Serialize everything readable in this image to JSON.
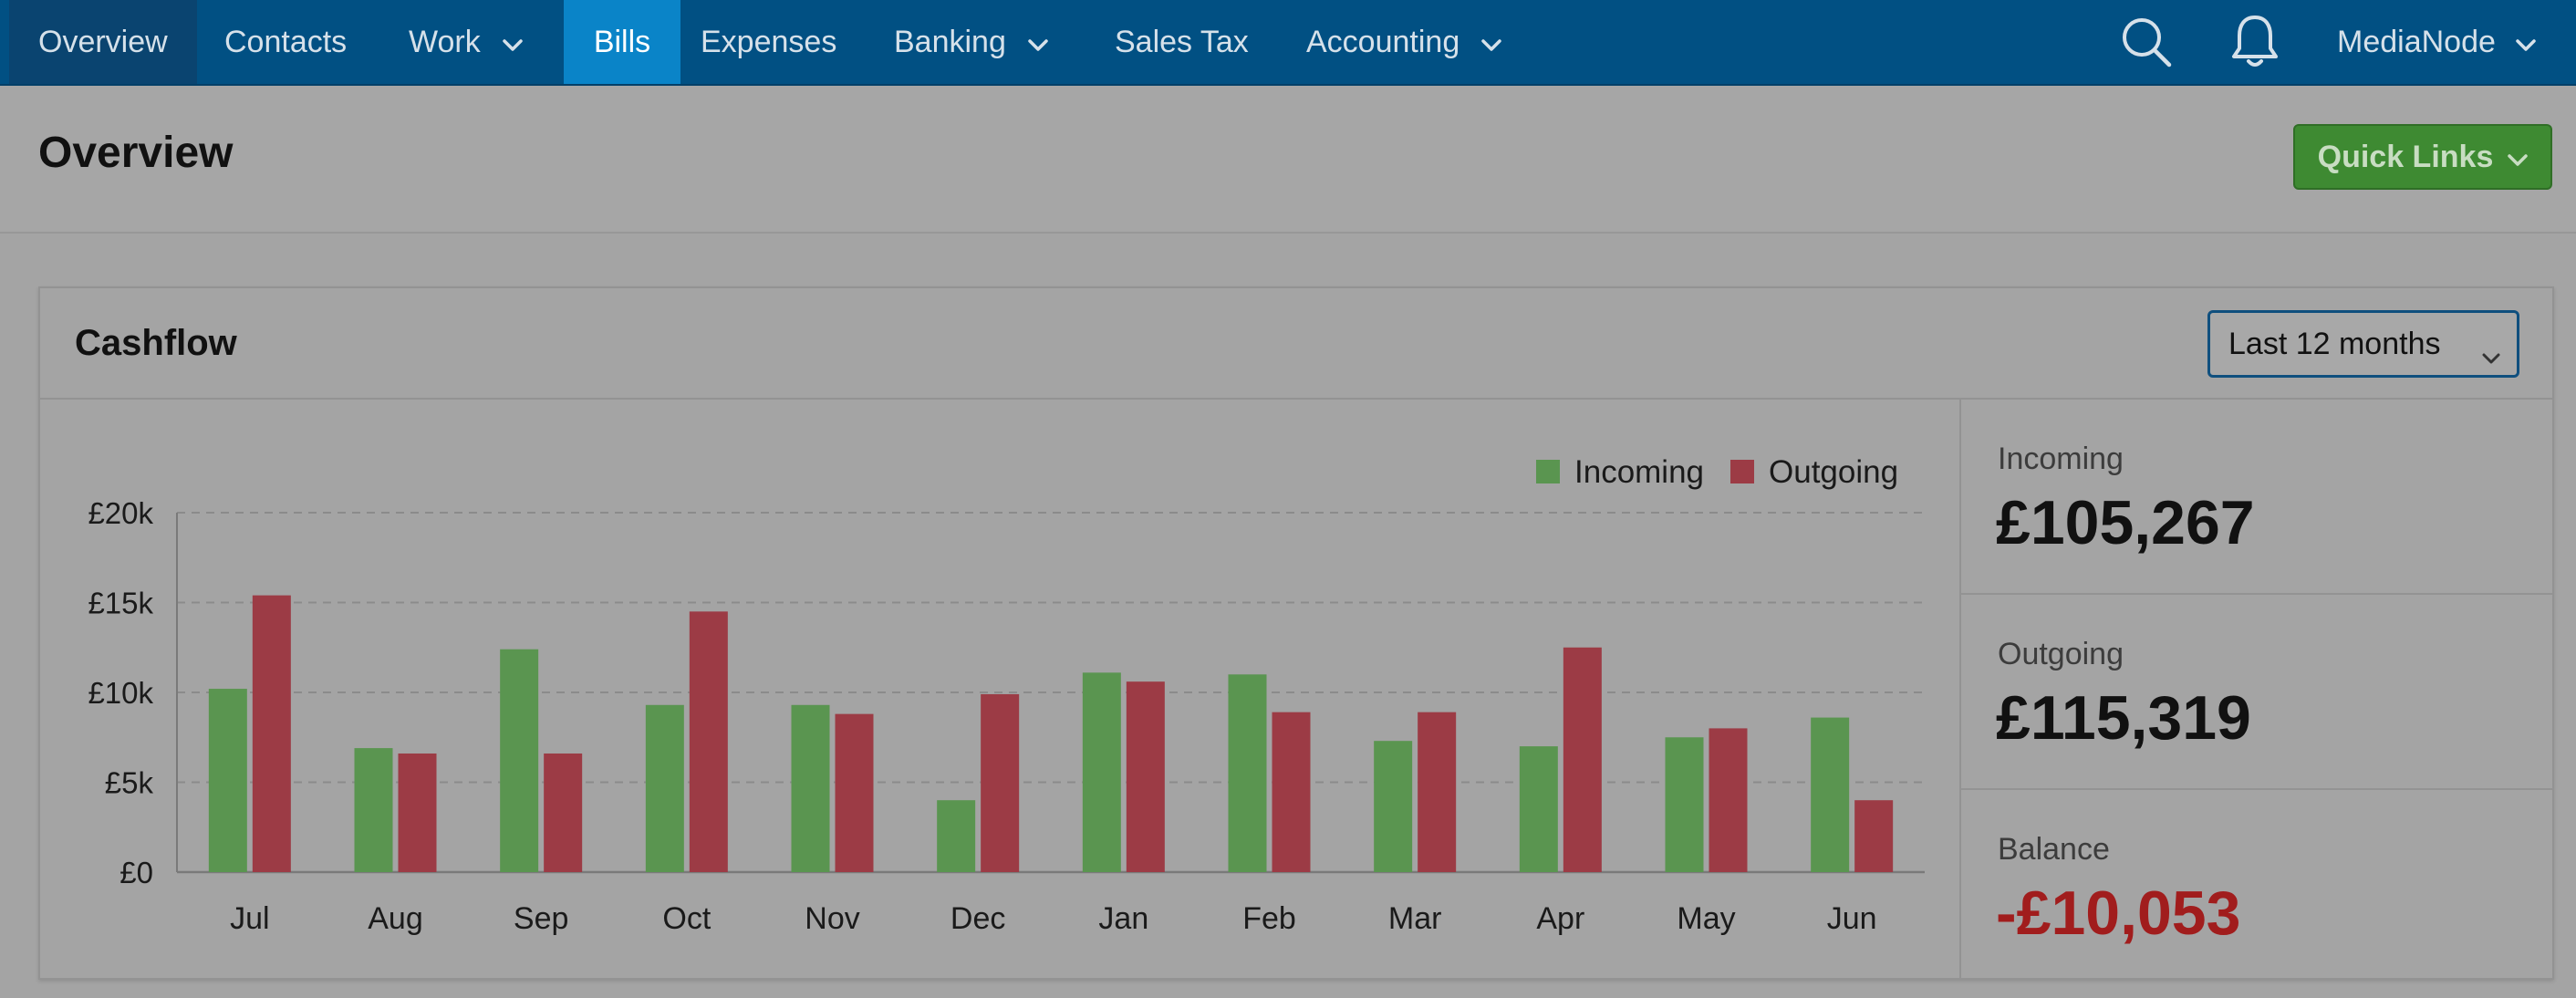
{
  "nav": {
    "items": [
      {
        "label": "Overview",
        "has_dropdown": false,
        "active": false
      },
      {
        "label": "Contacts",
        "has_dropdown": false,
        "active": false
      },
      {
        "label": "Work",
        "has_dropdown": true,
        "active": false
      },
      {
        "label": "Bills",
        "has_dropdown": false,
        "active": true
      },
      {
        "label": "Expenses",
        "has_dropdown": false,
        "active": false
      },
      {
        "label": "Banking",
        "has_dropdown": true,
        "active": false
      },
      {
        "label": "Sales Tax",
        "has_dropdown": false,
        "active": false
      },
      {
        "label": "Accounting",
        "has_dropdown": true,
        "active": false
      }
    ],
    "icons": [
      "search-icon",
      "bell-icon"
    ],
    "account_label": "MediaNode"
  },
  "page": {
    "title": "Overview",
    "quick_links_label": "Quick Links"
  },
  "cashflow": {
    "title": "Cashflow",
    "period_selected": "Last 12 months",
    "stats": {
      "incoming_label": "Incoming",
      "incoming_value": "£105,267",
      "outgoing_label": "Outgoing",
      "outgoing_value": "£115,319",
      "balance_label": "Balance",
      "balance_value": "-£10,053"
    }
  },
  "colors": {
    "nav_bg": "#015083",
    "nav_active": "#0a84c8",
    "incoming": "#5a9550",
    "outgoing": "#9c3b45",
    "balance_negative": "#a11d1d",
    "button_green": "#3e8a32"
  },
  "chart_data": {
    "type": "bar",
    "categories": [
      "Jul",
      "Aug",
      "Sep",
      "Oct",
      "Nov",
      "Dec",
      "Jan",
      "Feb",
      "Mar",
      "Apr",
      "May",
      "Jun"
    ],
    "series": [
      {
        "name": "Incoming",
        "values": [
          10200,
          6900,
          12400,
          9300,
          9300,
          4000,
          11100,
          11000,
          7300,
          7000,
          7500,
          8600
        ]
      },
      {
        "name": "Outgoing",
        "values": [
          15400,
          6600,
          6600,
          14500,
          8800,
          9900,
          10600,
          8900,
          8900,
          12500,
          8000,
          4000
        ]
      }
    ],
    "y_ticks": [
      "£0",
      "£5k",
      "£10k",
      "£15k",
      "£20k"
    ],
    "y_tick_values": [
      0,
      5000,
      10000,
      15000,
      20000
    ],
    "ylim": [
      0,
      20000
    ],
    "grid": true,
    "legend_position": "top-right"
  }
}
